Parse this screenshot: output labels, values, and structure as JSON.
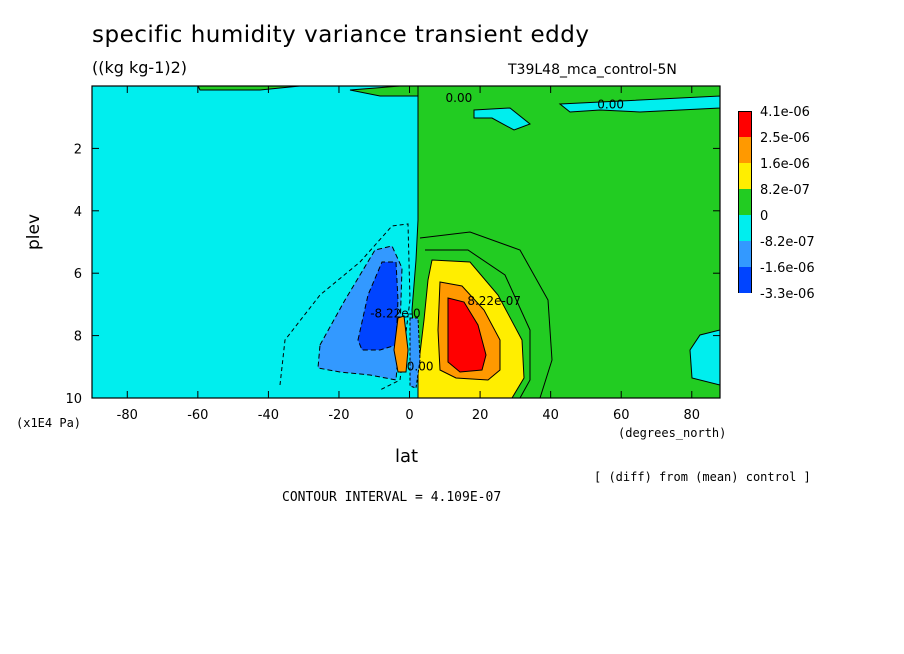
{
  "header": {
    "title": "specific humidity variance transient eddy",
    "units": "((kg kg-1)2)",
    "run": "T39L48_mca_control-5N"
  },
  "footer": {
    "diff_note": "[ (diff) from (mean) control ]",
    "contour_interval": "CONTOUR INTERVAL = 4.109E-07"
  },
  "chart_data": {
    "type": "contour",
    "xlabel": "lat",
    "x_units": "(degrees_north)",
    "ylabel": "plev",
    "y_units": "(x1E4 Pa)",
    "xlim": [
      -90,
      88
    ],
    "ylim": [
      10,
      0
    ],
    "x_ticks": [
      "-80",
      "-60",
      "-40",
      "-20",
      "0",
      "20",
      "40",
      "60",
      "80"
    ],
    "x_tick_values": [
      -80,
      -60,
      -40,
      -20,
      0,
      20,
      40,
      60,
      80
    ],
    "y_ticks": [
      "2",
      "4",
      "6",
      "8",
      "10"
    ],
    "y_tick_values": [
      2,
      4,
      6,
      8,
      10
    ],
    "contour_labels": [
      {
        "text": "0.00",
        "lat": 14,
        "plev": 0.2
      },
      {
        "text": "0.00",
        "lat": 57,
        "plev": 0.4
      },
      {
        "text": "8.22e-07",
        "lat": 24,
        "plev": 6.7
      },
      {
        "text": "-8.22e-0",
        "lat": -4,
        "plev": 7.1
      },
      {
        "text": "0.00",
        "lat": 3,
        "plev": 8.8
      }
    ],
    "legend": {
      "position": "right",
      "levels": [
        "4.1e-06",
        "2.5e-06",
        "1.6e-06",
        "8.2e-07",
        "0",
        "-8.2e-07",
        "-1.6e-06",
        "-3.3e-06"
      ],
      "colors": [
        "#ff0000",
        "#ff9900",
        "#ffee00",
        "#22cc22",
        "#00eeee",
        "#3399ff",
        "#0044ff"
      ]
    }
  }
}
